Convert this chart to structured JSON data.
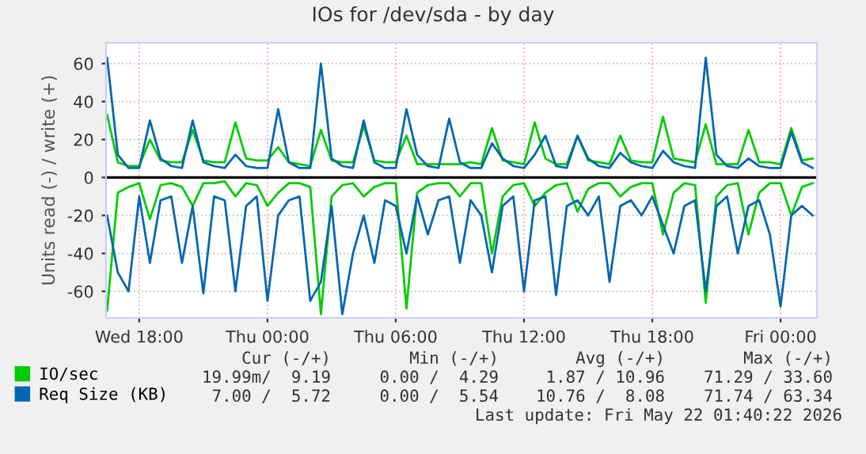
{
  "chart_data": {
    "type": "line",
    "title": "IOs for /dev/sda - by day",
    "ylabel": "Units read (-) / write (+)",
    "x": [
      "2026-05-20T16:30",
      "2026-05-20T17:00",
      "2026-05-20T17:30",
      "2026-05-20T18:00",
      "2026-05-20T18:30",
      "2026-05-20T19:00",
      "2026-05-20T19:30",
      "2026-05-20T20:00",
      "2026-05-20T20:30",
      "2026-05-20T21:00",
      "2026-05-20T21:30",
      "2026-05-20T22:00",
      "2026-05-20T22:30",
      "2026-05-20T23:00",
      "2026-05-20T23:30",
      "2026-05-21T00:00",
      "2026-05-21T00:30",
      "2026-05-21T01:00",
      "2026-05-21T01:30",
      "2026-05-21T02:00",
      "2026-05-21T02:30",
      "2026-05-21T03:00",
      "2026-05-21T03:30",
      "2026-05-21T04:00",
      "2026-05-21T04:30",
      "2026-05-21T05:00",
      "2026-05-21T05:30",
      "2026-05-21T06:00",
      "2026-05-21T06:30",
      "2026-05-21T07:00",
      "2026-05-21T07:30",
      "2026-05-21T08:00",
      "2026-05-21T08:30",
      "2026-05-21T09:00",
      "2026-05-21T09:30",
      "2026-05-21T10:00",
      "2026-05-21T10:30",
      "2026-05-21T11:00",
      "2026-05-21T11:30",
      "2026-05-21T12:00",
      "2026-05-21T12:30",
      "2026-05-21T13:00",
      "2026-05-21T13:30",
      "2026-05-21T14:00",
      "2026-05-21T14:30",
      "2026-05-21T15:00",
      "2026-05-21T15:30",
      "2026-05-21T16:00",
      "2026-05-21T16:30",
      "2026-05-21T17:00",
      "2026-05-21T17:30",
      "2026-05-21T18:00",
      "2026-05-21T18:30",
      "2026-05-21T19:00",
      "2026-05-21T19:30",
      "2026-05-21T20:00",
      "2026-05-21T20:30",
      "2026-05-21T21:00",
      "2026-05-21T21:30",
      "2026-05-21T22:00",
      "2026-05-21T22:30",
      "2026-05-21T23:00",
      "2026-05-21T23:30",
      "2026-05-22T00:00",
      "2026-05-22T00:30",
      "2026-05-22T01:00",
      "2026-05-22T01:30"
    ],
    "series": [
      {
        "name": "IO/sec",
        "color": "#00cc00",
        "values": [
          33,
          8,
          6,
          6,
          20,
          9,
          8,
          8,
          25,
          9,
          8,
          8,
          29,
          10,
          9,
          9,
          16,
          8,
          7,
          6,
          25,
          9,
          8,
          8,
          27,
          9,
          8,
          8,
          22,
          7,
          7,
          7,
          7,
          7,
          8,
          7,
          26,
          9,
          8,
          7,
          29,
          10,
          7,
          7,
          22,
          9,
          8,
          7,
          22,
          9,
          8,
          8,
          32,
          10,
          9,
          8,
          28,
          7,
          7,
          7,
          25,
          8,
          8,
          7,
          26,
          9,
          10
        ]
      },
      {
        "color": "#00cc00",
        "values": [
          -70,
          -8,
          -5,
          -3,
          -22,
          -4,
          -3,
          -5,
          -15,
          -3,
          -3,
          -2,
          -10,
          -3,
          -4,
          -15,
          -8,
          -3,
          -3,
          -5,
          -72,
          -10,
          -4,
          -3,
          -10,
          -5,
          -3,
          -3,
          -69,
          -8,
          -4,
          -3,
          -3,
          -10,
          -3,
          -3,
          -40,
          -10,
          -4,
          -3,
          -15,
          -8,
          -4,
          -3,
          -18,
          -6,
          -3,
          -3,
          -10,
          -5,
          -3,
          -3,
          -30,
          -8,
          -3,
          -4,
          -66,
          -10,
          -4,
          -3,
          -30,
          -8,
          -3,
          -3,
          -20,
          -5,
          -3
        ]
      },
      {
        "name": "Req Size (KB)",
        "color": "#0066b3",
        "values": [
          63,
          12,
          5,
          5,
          30,
          10,
          6,
          5,
          30,
          8,
          6,
          5,
          12,
          6,
          5,
          5,
          36,
          8,
          5,
          5,
          60,
          10,
          6,
          5,
          30,
          8,
          5,
          5,
          36,
          12,
          6,
          5,
          31,
          8,
          5,
          5,
          18,
          10,
          6,
          5,
          12,
          22,
          6,
          5,
          22,
          10,
          6,
          5,
          13,
          8,
          6,
          5,
          14,
          8,
          6,
          5,
          63,
          12,
          6,
          5,
          10,
          6,
          5,
          5,
          24,
          8,
          5
        ]
      },
      {
        "color": "#0066b3",
        "values": [
          -20,
          -50,
          -60,
          -10,
          -45,
          -12,
          -10,
          -45,
          -15,
          -61,
          -10,
          -12,
          -60,
          -15,
          -10,
          -65,
          -20,
          -12,
          -10,
          -65,
          -55,
          -15,
          -72,
          -40,
          -20,
          -45,
          -12,
          -15,
          -40,
          -10,
          -30,
          -12,
          -10,
          -45,
          -12,
          -20,
          -50,
          -15,
          -10,
          -60,
          -12,
          -10,
          -62,
          -15,
          -12,
          -20,
          -10,
          -55,
          -15,
          -12,
          -20,
          -10,
          -25,
          -40,
          -15,
          -12,
          -60,
          -15,
          -10,
          -40,
          -15,
          -12,
          -30,
          -68,
          -20,
          -15,
          -20
        ]
      }
    ],
    "xlim": [
      "2026-05-20T16:27",
      "2026-05-22T01:42"
    ],
    "xticks": [
      {
        "value": "2026-05-20T18:00",
        "label": "Wed 18:00"
      },
      {
        "value": "2026-05-21T00:00",
        "label": "Thu 00:00"
      },
      {
        "value": "2026-05-21T06:00",
        "label": "Thu 06:00"
      },
      {
        "value": "2026-05-21T12:00",
        "label": "Thu 12:00"
      },
      {
        "value": "2026-05-21T18:00",
        "label": "Thu 18:00"
      },
      {
        "value": "2026-05-22T00:00",
        "label": "Fri 00:00"
      }
    ],
    "ylim": [
      -74,
      71
    ],
    "yticks": [
      -60,
      -40,
      -20,
      0,
      20,
      40,
      60
    ],
    "ref_lines": [
      {
        "axis": "y",
        "value": 0,
        "color": "#000000"
      }
    ],
    "grid": true,
    "legend": "bottom left",
    "annotations": [
      "Cur (-/+)",
      "Min (-/+)",
      "Avg (-/+)",
      "Max (-/+)",
      "19.99m/  9.19",
      "0.00 /  4.29",
      "1.87 / 10.96",
      "71.29 / 33.60",
      "7.00 /  5.72",
      "0.00 /  5.54",
      "10.76 /  8.08",
      "71.74 / 63.34",
      "Last update: Fri May 22 01:40:22 2026"
    ]
  }
}
